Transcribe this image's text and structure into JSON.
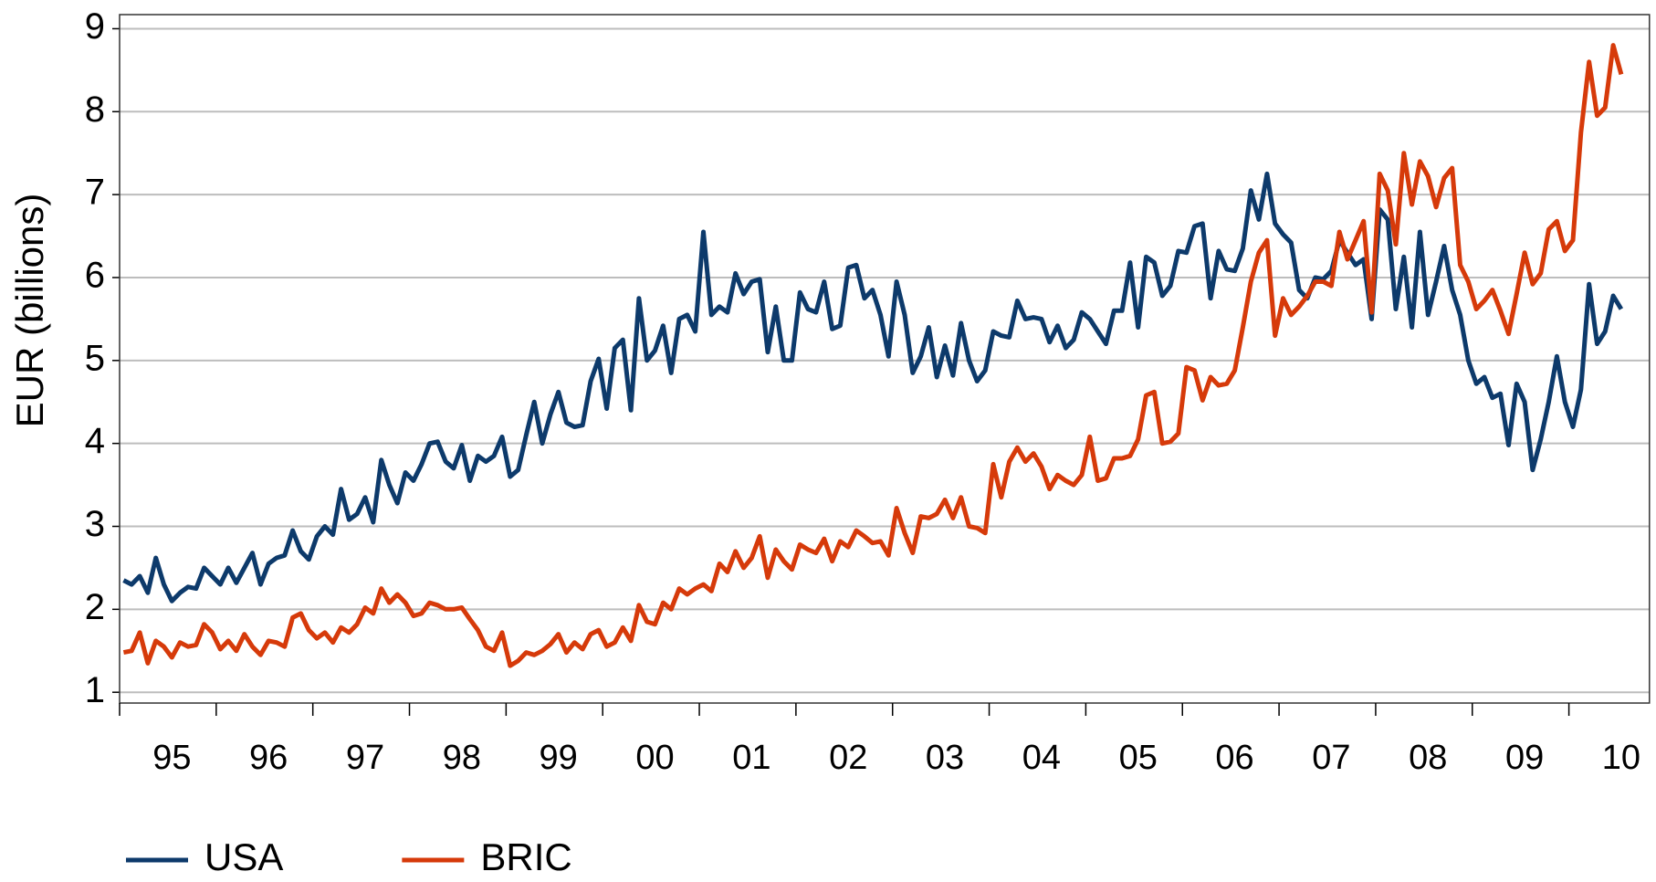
{
  "chart_data": {
    "type": "line",
    "y_label": "EUR (billions)",
    "categories": [
      null,
      null,
      null,
      null,
      null,
      null,
      "95",
      null,
      null,
      null,
      null,
      null,
      null,
      null,
      null,
      null,
      null,
      null,
      "96",
      null,
      null,
      null,
      null,
      null,
      null,
      null,
      null,
      null,
      null,
      null,
      "97",
      null,
      null,
      null,
      null,
      null,
      null,
      null,
      null,
      null,
      null,
      null,
      "98",
      null,
      null,
      null,
      null,
      null,
      null,
      null,
      null,
      null,
      null,
      null,
      "99",
      null,
      null,
      null,
      null,
      null,
      null,
      null,
      null,
      null,
      null,
      null,
      "00",
      null,
      null,
      null,
      null,
      null,
      null,
      null,
      null,
      null,
      null,
      null,
      "01",
      null,
      null,
      null,
      null,
      null,
      null,
      null,
      null,
      null,
      null,
      null,
      "02",
      null,
      null,
      null,
      null,
      null,
      null,
      null,
      null,
      null,
      null,
      null,
      "03",
      null,
      null,
      null,
      null,
      null,
      null,
      null,
      null,
      null,
      null,
      null,
      "04",
      null,
      null,
      null,
      null,
      null,
      null,
      null,
      null,
      null,
      null,
      null,
      "05",
      null,
      null,
      null,
      null,
      null,
      null,
      null,
      null,
      null,
      null,
      null,
      "06",
      null,
      null,
      null,
      null,
      null,
      null,
      null,
      null,
      null,
      null,
      null,
      "07",
      null,
      null,
      null,
      null,
      null,
      null,
      null,
      null,
      null,
      null,
      null,
      "08",
      null,
      null,
      null,
      null,
      null,
      null,
      null,
      null,
      null,
      null,
      null,
      "09",
      null,
      null,
      null,
      null,
      null,
      null,
      null,
      null,
      null,
      null,
      null,
      "10"
    ],
    "series": [
      {
        "name": "USA",
        "color": "#0d3a6b",
        "values": [
          2.35,
          2.3,
          2.4,
          2.2,
          2.62,
          2.3,
          2.1,
          2.2,
          2.27,
          2.25,
          2.5,
          2.4,
          2.3,
          2.5,
          2.32,
          2.5,
          2.68,
          2.3,
          2.55,
          2.62,
          2.65,
          2.95,
          2.7,
          2.6,
          2.88,
          3.0,
          2.9,
          3.45,
          3.08,
          3.15,
          3.35,
          3.05,
          3.8,
          3.5,
          3.28,
          3.65,
          3.55,
          3.75,
          4.0,
          4.02,
          3.78,
          3.7,
          3.98,
          3.55,
          3.85,
          3.78,
          3.85,
          4.08,
          3.6,
          3.68,
          4.1,
          4.5,
          4.0,
          4.35,
          4.62,
          4.25,
          4.2,
          4.22,
          4.75,
          5.02,
          4.42,
          5.15,
          5.25,
          4.4,
          5.75,
          5.0,
          5.12,
          5.42,
          4.85,
          5.5,
          5.55,
          5.35,
          6.55,
          5.55,
          5.65,
          5.58,
          6.05,
          5.8,
          5.95,
          5.98,
          5.1,
          5.65,
          5.0,
          5.0,
          5.82,
          5.62,
          5.58,
          5.95,
          5.38,
          5.42,
          6.12,
          6.15,
          5.75,
          5.85,
          5.55,
          5.05,
          5.95,
          5.55,
          4.85,
          5.05,
          5.4,
          4.8,
          5.18,
          4.82,
          5.45,
          5.0,
          4.75,
          4.88,
          5.35,
          5.3,
          5.28,
          5.72,
          5.5,
          5.52,
          5.5,
          5.22,
          5.42,
          5.15,
          5.25,
          5.58,
          5.5,
          5.35,
          5.2,
          5.6,
          5.6,
          6.18,
          5.4,
          6.25,
          6.18,
          5.78,
          5.9,
          6.32,
          6.3,
          6.62,
          6.65,
          5.75,
          6.32,
          6.1,
          6.08,
          6.35,
          7.05,
          6.7,
          7.25,
          6.65,
          6.52,
          6.42,
          5.85,
          5.75,
          6.0,
          5.98,
          6.08,
          6.45,
          6.3,
          6.15,
          6.22,
          5.5,
          6.82,
          6.7,
          5.62,
          6.25,
          5.4,
          6.55,
          5.55,
          5.95,
          6.38,
          5.85,
          5.55,
          5.0,
          4.72,
          4.8,
          4.55,
          4.6,
          3.98,
          4.72,
          4.5,
          3.68,
          4.05,
          4.5,
          5.05,
          4.5,
          4.2,
          4.65,
          5.92,
          5.2,
          5.35,
          5.78,
          5.62
        ]
      },
      {
        "name": "BRIC",
        "color": "#d63a0a",
        "values": [
          1.48,
          1.5,
          1.72,
          1.35,
          1.62,
          1.55,
          1.42,
          1.6,
          1.55,
          1.57,
          1.82,
          1.72,
          1.52,
          1.62,
          1.5,
          1.7,
          1.55,
          1.45,
          1.62,
          1.6,
          1.55,
          1.9,
          1.95,
          1.75,
          1.65,
          1.72,
          1.6,
          1.78,
          1.72,
          1.82,
          2.02,
          1.95,
          2.25,
          2.08,
          2.18,
          2.08,
          1.92,
          1.95,
          2.08,
          2.05,
          2.0,
          2.0,
          2.02,
          1.88,
          1.75,
          1.55,
          1.5,
          1.72,
          1.32,
          1.38,
          1.48,
          1.45,
          1.5,
          1.58,
          1.7,
          1.48,
          1.6,
          1.52,
          1.7,
          1.75,
          1.55,
          1.6,
          1.78,
          1.62,
          2.05,
          1.85,
          1.82,
          2.08,
          2.0,
          2.25,
          2.18,
          2.25,
          2.3,
          2.22,
          2.55,
          2.45,
          2.7,
          2.5,
          2.62,
          2.88,
          2.38,
          2.72,
          2.58,
          2.48,
          2.78,
          2.72,
          2.68,
          2.85,
          2.58,
          2.82,
          2.75,
          2.95,
          2.88,
          2.8,
          2.82,
          2.65,
          3.22,
          2.92,
          2.68,
          3.12,
          3.1,
          3.15,
          3.32,
          3.1,
          3.35,
          3.0,
          2.98,
          2.92,
          3.75,
          3.35,
          3.78,
          3.95,
          3.78,
          3.88,
          3.72,
          3.45,
          3.62,
          3.55,
          3.5,
          3.62,
          4.08,
          3.55,
          3.58,
          3.82,
          3.82,
          3.85,
          4.05,
          4.58,
          4.62,
          4.0,
          4.02,
          4.12,
          4.92,
          4.88,
          4.52,
          4.8,
          4.7,
          4.72,
          4.88,
          5.4,
          5.95,
          6.3,
          6.45,
          5.3,
          5.75,
          5.55,
          5.65,
          5.78,
          5.95,
          5.95,
          5.9,
          6.55,
          6.22,
          6.45,
          6.68,
          5.58,
          7.25,
          7.05,
          6.4,
          7.5,
          6.88,
          7.4,
          7.22,
          6.85,
          7.2,
          7.32,
          6.15,
          5.95,
          5.62,
          5.72,
          5.85,
          5.6,
          5.32,
          5.8,
          6.3,
          5.92,
          6.05,
          6.58,
          6.68,
          6.32,
          6.45,
          7.75,
          8.6,
          7.95,
          8.05,
          8.8,
          8.45
        ]
      }
    ],
    "ylim": [
      0.87,
      9.17
    ],
    "yticks": [
      1,
      2,
      3,
      4,
      5,
      6,
      7,
      8,
      9
    ],
    "grid": true,
    "legend": "bottom"
  }
}
